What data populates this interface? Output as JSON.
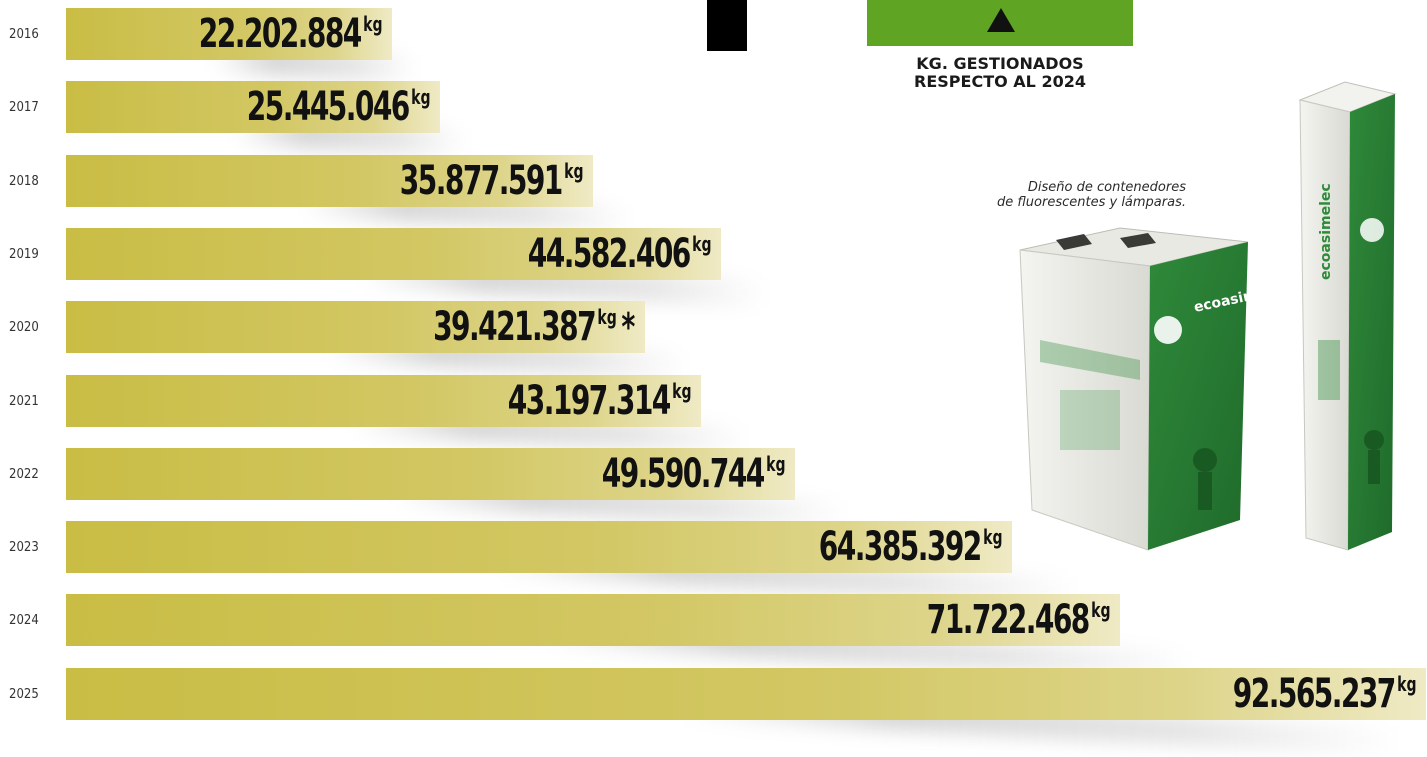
{
  "chart_data": {
    "type": "bar",
    "orientation": "horizontal",
    "categories": [
      "2016",
      "2017",
      "2018",
      "2019",
      "2020",
      "2021",
      "2022",
      "2023",
      "2024",
      "2025"
    ],
    "values": [
      22202884,
      25445046,
      35877591,
      44582406,
      39421387,
      43197314,
      49590744,
      64385392,
      71722468,
      92565237
    ],
    "value_labels": [
      "22.202.884",
      "25.445.046",
      "35.877.591",
      "44.582.406",
      "39.421.387",
      "43.197.314",
      "49.590.744",
      "64.385.392",
      "71.722.468",
      "92.565.237"
    ],
    "unit": "kg",
    "notes": [
      "",
      "",
      "",
      "",
      "*",
      "",
      "",
      "",
      "",
      ""
    ],
    "title": "",
    "xlabel": "",
    "ylabel": "",
    "xlim": [
      0,
      92565237
    ],
    "grid": false,
    "legend": "none",
    "bar_color": "#cfc45a"
  },
  "indicator": {
    "caption": "KG. GESTIONADOS\nRESPECTO AL 2024",
    "banner_color": "#5fa523"
  },
  "illustration": {
    "caption": "Diseño de contenedores\nde fluorescentes y lámparas.",
    "box_text": "ecoasimelec"
  }
}
